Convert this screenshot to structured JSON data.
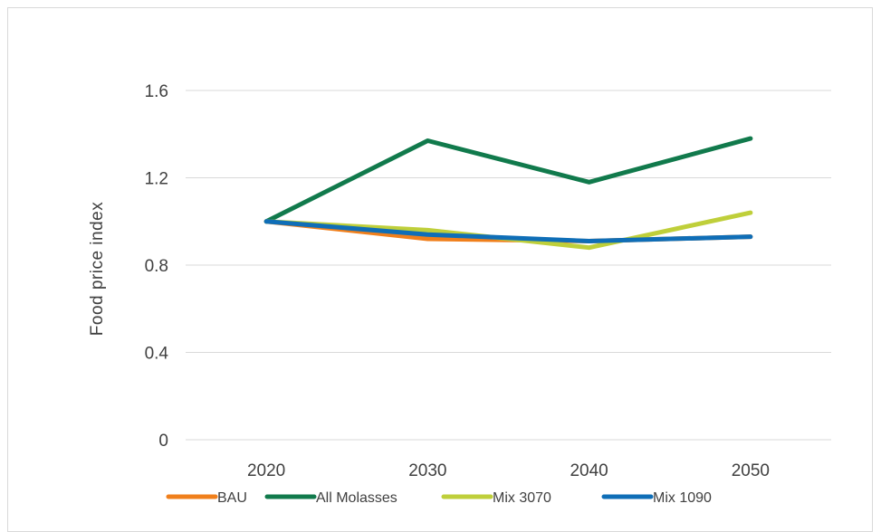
{
  "chart_data": {
    "type": "line",
    "title": "",
    "xlabel": "",
    "ylabel": "Food price index",
    "categories": [
      "2020",
      "2030",
      "2040",
      "2050"
    ],
    "ylim": [
      0,
      1.6
    ],
    "yticks": [
      0,
      0.4,
      0.8,
      1.2,
      1.6
    ],
    "ytick_labels": [
      "0",
      "0.4",
      "0.8",
      "1.2",
      "1.6"
    ],
    "grid": true,
    "legend_position": "bottom",
    "series": [
      {
        "name": "BAU",
        "color": "#f07f1b",
        "values": [
          1.0,
          0.92,
          0.91,
          0.93
        ]
      },
      {
        "name": "All Molasses",
        "color": "#117a4c",
        "values": [
          1.0,
          1.37,
          1.18,
          1.38
        ]
      },
      {
        "name": "Mix 3070",
        "color": "#bfcf3a",
        "values": [
          1.0,
          0.96,
          0.88,
          1.04
        ]
      },
      {
        "name": "Mix 1090",
        "color": "#0f6eb7",
        "values": [
          1.0,
          0.94,
          0.91,
          0.93
        ]
      }
    ]
  }
}
